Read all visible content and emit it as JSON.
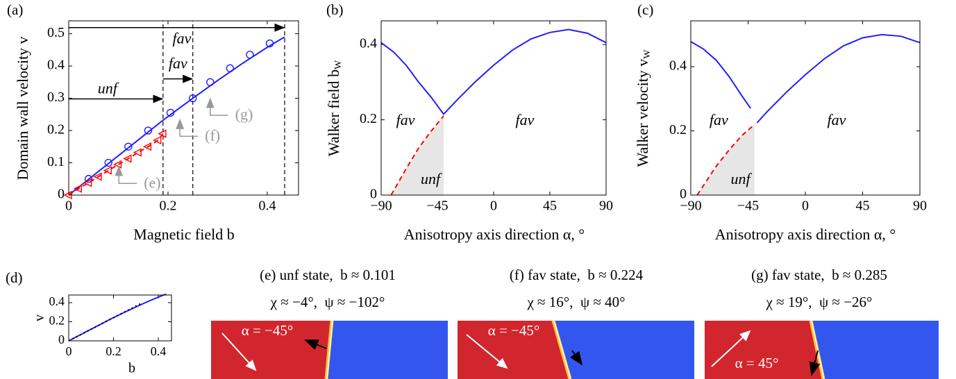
{
  "chart_data": [
    {
      "type": "line",
      "label": "(a)",
      "xlabel": "Magnetic field b",
      "ylabel": "Domain wall velocity v",
      "xlim": [
        0,
        0.463
      ],
      "ylim": [
        0,
        0.54
      ],
      "xticks": [
        0,
        0.2,
        0.4
      ],
      "yticks": [
        0,
        0.1,
        0.2,
        0.3,
        0.4,
        0.5
      ],
      "series": [
        {
          "color": "#1f1fff",
          "x": [
            0,
            0.05,
            0.1,
            0.15,
            0.19,
            0.25,
            0.3,
            0.35,
            0.4,
            0.435
          ],
          "values": [
            0,
            0.061,
            0.122,
            0.183,
            0.232,
            0.3,
            0.355,
            0.408,
            0.458,
            0.49
          ]
        },
        {
          "color": "#1f1fff",
          "marker": "circle",
          "line": false,
          "x": [
            0.04,
            0.08,
            0.12,
            0.16,
            0.205,
            0.25,
            0.285,
            0.325,
            0.365,
            0.405
          ],
          "values": [
            0.05,
            0.1,
            0.15,
            0.2,
            0.255,
            0.3,
            0.35,
            0.393,
            0.435,
            0.47
          ]
        },
        {
          "color": "#ff0000",
          "dash": "dashed",
          "marker": "triangle",
          "x": [
            0,
            0.02,
            0.04,
            0.06,
            0.08,
            0.1,
            0.12,
            0.14,
            0.16,
            0.18,
            0.19
          ],
          "values": [
            0,
            0.02,
            0.038,
            0.057,
            0.076,
            0.095,
            0.113,
            0.132,
            0.15,
            0.17,
            0.19
          ]
        }
      ],
      "vlines": [
        0.19,
        0.25,
        0.435
      ],
      "arrows": [
        {
          "x": [
            0,
            0.435
          ],
          "y": 0.519
        },
        {
          "x": [
            0.19,
            0.25
          ],
          "y": 0.36
        },
        {
          "x": [
            0,
            0.19
          ],
          "y": 0.298
        }
      ],
      "annotations": [
        {
          "text": "fav",
          "x": 0.228,
          "y": 0.481
        },
        {
          "text": "fav",
          "x": 0.22,
          "y": 0.403
        },
        {
          "text": "unf",
          "x": 0.078,
          "y": 0.326
        }
      ],
      "callouts": [
        {
          "text": "(e)",
          "x": 0.101,
          "y": 0.092
        },
        {
          "text": "(f)",
          "x": 0.224,
          "y": 0.238
        },
        {
          "text": "(g)",
          "x": 0.285,
          "y": 0.303
        }
      ]
    },
    {
      "type": "line",
      "label": "(b)",
      "xlabel": "Anisotropy axis direction α, °",
      "ylabel": "Walker field b",
      "ylabel_sub": "W",
      "xlim": [
        -90,
        90
      ],
      "ylim": [
        0,
        0.463
      ],
      "xticks": [
        {
          "value": -90,
          "label": "−90"
        },
        {
          "value": -45,
          "label": "−45"
        },
        0,
        45,
        90
      ],
      "yticks": [
        0,
        0.2,
        0.4
      ],
      "series": [
        {
          "color": "#1f1fff",
          "x": [
            -90,
            -80,
            -70,
            -60,
            -50,
            -40,
            -30,
            -15,
            0,
            15,
            30,
            45,
            60,
            75,
            90
          ],
          "values": [
            0.405,
            0.38,
            0.345,
            0.3,
            0.26,
            0.215,
            0.25,
            0.3,
            0.345,
            0.385,
            0.415,
            0.432,
            0.44,
            0.43,
            0.405
          ]
        },
        {
          "color": "#ff0000",
          "dash": "dashed",
          "fill": "#e6e6e6",
          "x": [
            -82,
            -70,
            -60,
            -50,
            -40
          ],
          "values": [
            0,
            0.07,
            0.125,
            0.17,
            0.21
          ]
        }
      ],
      "annotations": [
        {
          "text": "fav",
          "x": -70.5,
          "y": 0.196
        },
        {
          "text": "fav",
          "x": 25,
          "y": 0.196
        },
        {
          "text": "unf",
          "x": -50.5,
          "y": 0.039
        }
      ]
    },
    {
      "type": "line",
      "label": "(c)",
      "xlabel": "Anisotropy axis direction α, °",
      "ylabel": "Walker velocity v",
      "ylabel_sub": "W",
      "xlim": [
        -90,
        90
      ],
      "ylim": [
        0,
        0.543
      ],
      "xticks": [
        {
          "value": -90,
          "label": "−90"
        },
        {
          "value": -45,
          "label": "−45"
        },
        0,
        45,
        90
      ],
      "yticks": [
        0,
        0.2,
        0.4
      ],
      "series": [
        {
          "color": "#1f1fff",
          "x": [
            -90,
            -80,
            -70,
            -60,
            -50,
            -43,
            -40,
            -38,
            -30,
            -15,
            0,
            15,
            30,
            45,
            60,
            75,
            90
          ],
          "values": [
            0.478,
            0.455,
            0.42,
            0.37,
            0.31,
            0.27,
            null,
            0.225,
            0.26,
            0.32,
            0.375,
            0.425,
            0.465,
            0.49,
            0.5,
            0.495,
            0.475
          ]
        },
        {
          "color": "#ff0000",
          "dash": "dashed",
          "fill": "#e6e6e6",
          "x": [
            -85,
            -70,
            -60,
            -50,
            -40
          ],
          "values": [
            0,
            0.09,
            0.14,
            0.185,
            0.22
          ]
        }
      ],
      "annotations": [
        {
          "text": "fav",
          "x": -68,
          "y": 0.229
        },
        {
          "text": "fav",
          "x": 24.5,
          "y": 0.229
        },
        {
          "text": "unf",
          "x": -51,
          "y": 0.045
        }
      ]
    },
    {
      "type": "line",
      "label": "(d)",
      "xlabel": "b",
      "ylabel": "v",
      "xlim": [
        0,
        0.459
      ],
      "ylim": [
        0,
        0.48
      ],
      "xticks": [
        0,
        0.2,
        0.4
      ],
      "yticks": [
        0,
        0.2,
        0.4
      ],
      "series": [
        {
          "color": "#1f1fff",
          "x": [
            0,
            0.05,
            0.1,
            0.15,
            0.19,
            0.25,
            0.3,
            0.35,
            0.4,
            0.435
          ],
          "values": [
            0,
            0.061,
            0.122,
            0.183,
            0.232,
            0.3,
            0.355,
            0.408,
            0.458,
            0.49
          ]
        },
        {
          "color": "#000000",
          "dash": "dotted",
          "x": [
            0,
            0.33
          ],
          "values": [
            0,
            0.4
          ]
        }
      ]
    }
  ],
  "panels": [
    {
      "title": "(e) unf state,  b ≈ 0.101",
      "angles": "χ ≈ −4°,  ψ ≈ −102°",
      "alpha": "α = −45°"
    },
    {
      "title": "(f) fav state,  b ≈ 0.224",
      "angles": "χ ≈ 16°,  ψ ≈ 40°",
      "alpha": "α = −45°"
    },
    {
      "title": "(g) fav state,  b ≈ 0.285",
      "angles": "χ ≈ 19°,  ψ ≈ −26°",
      "alpha": "α = 45°"
    }
  ]
}
